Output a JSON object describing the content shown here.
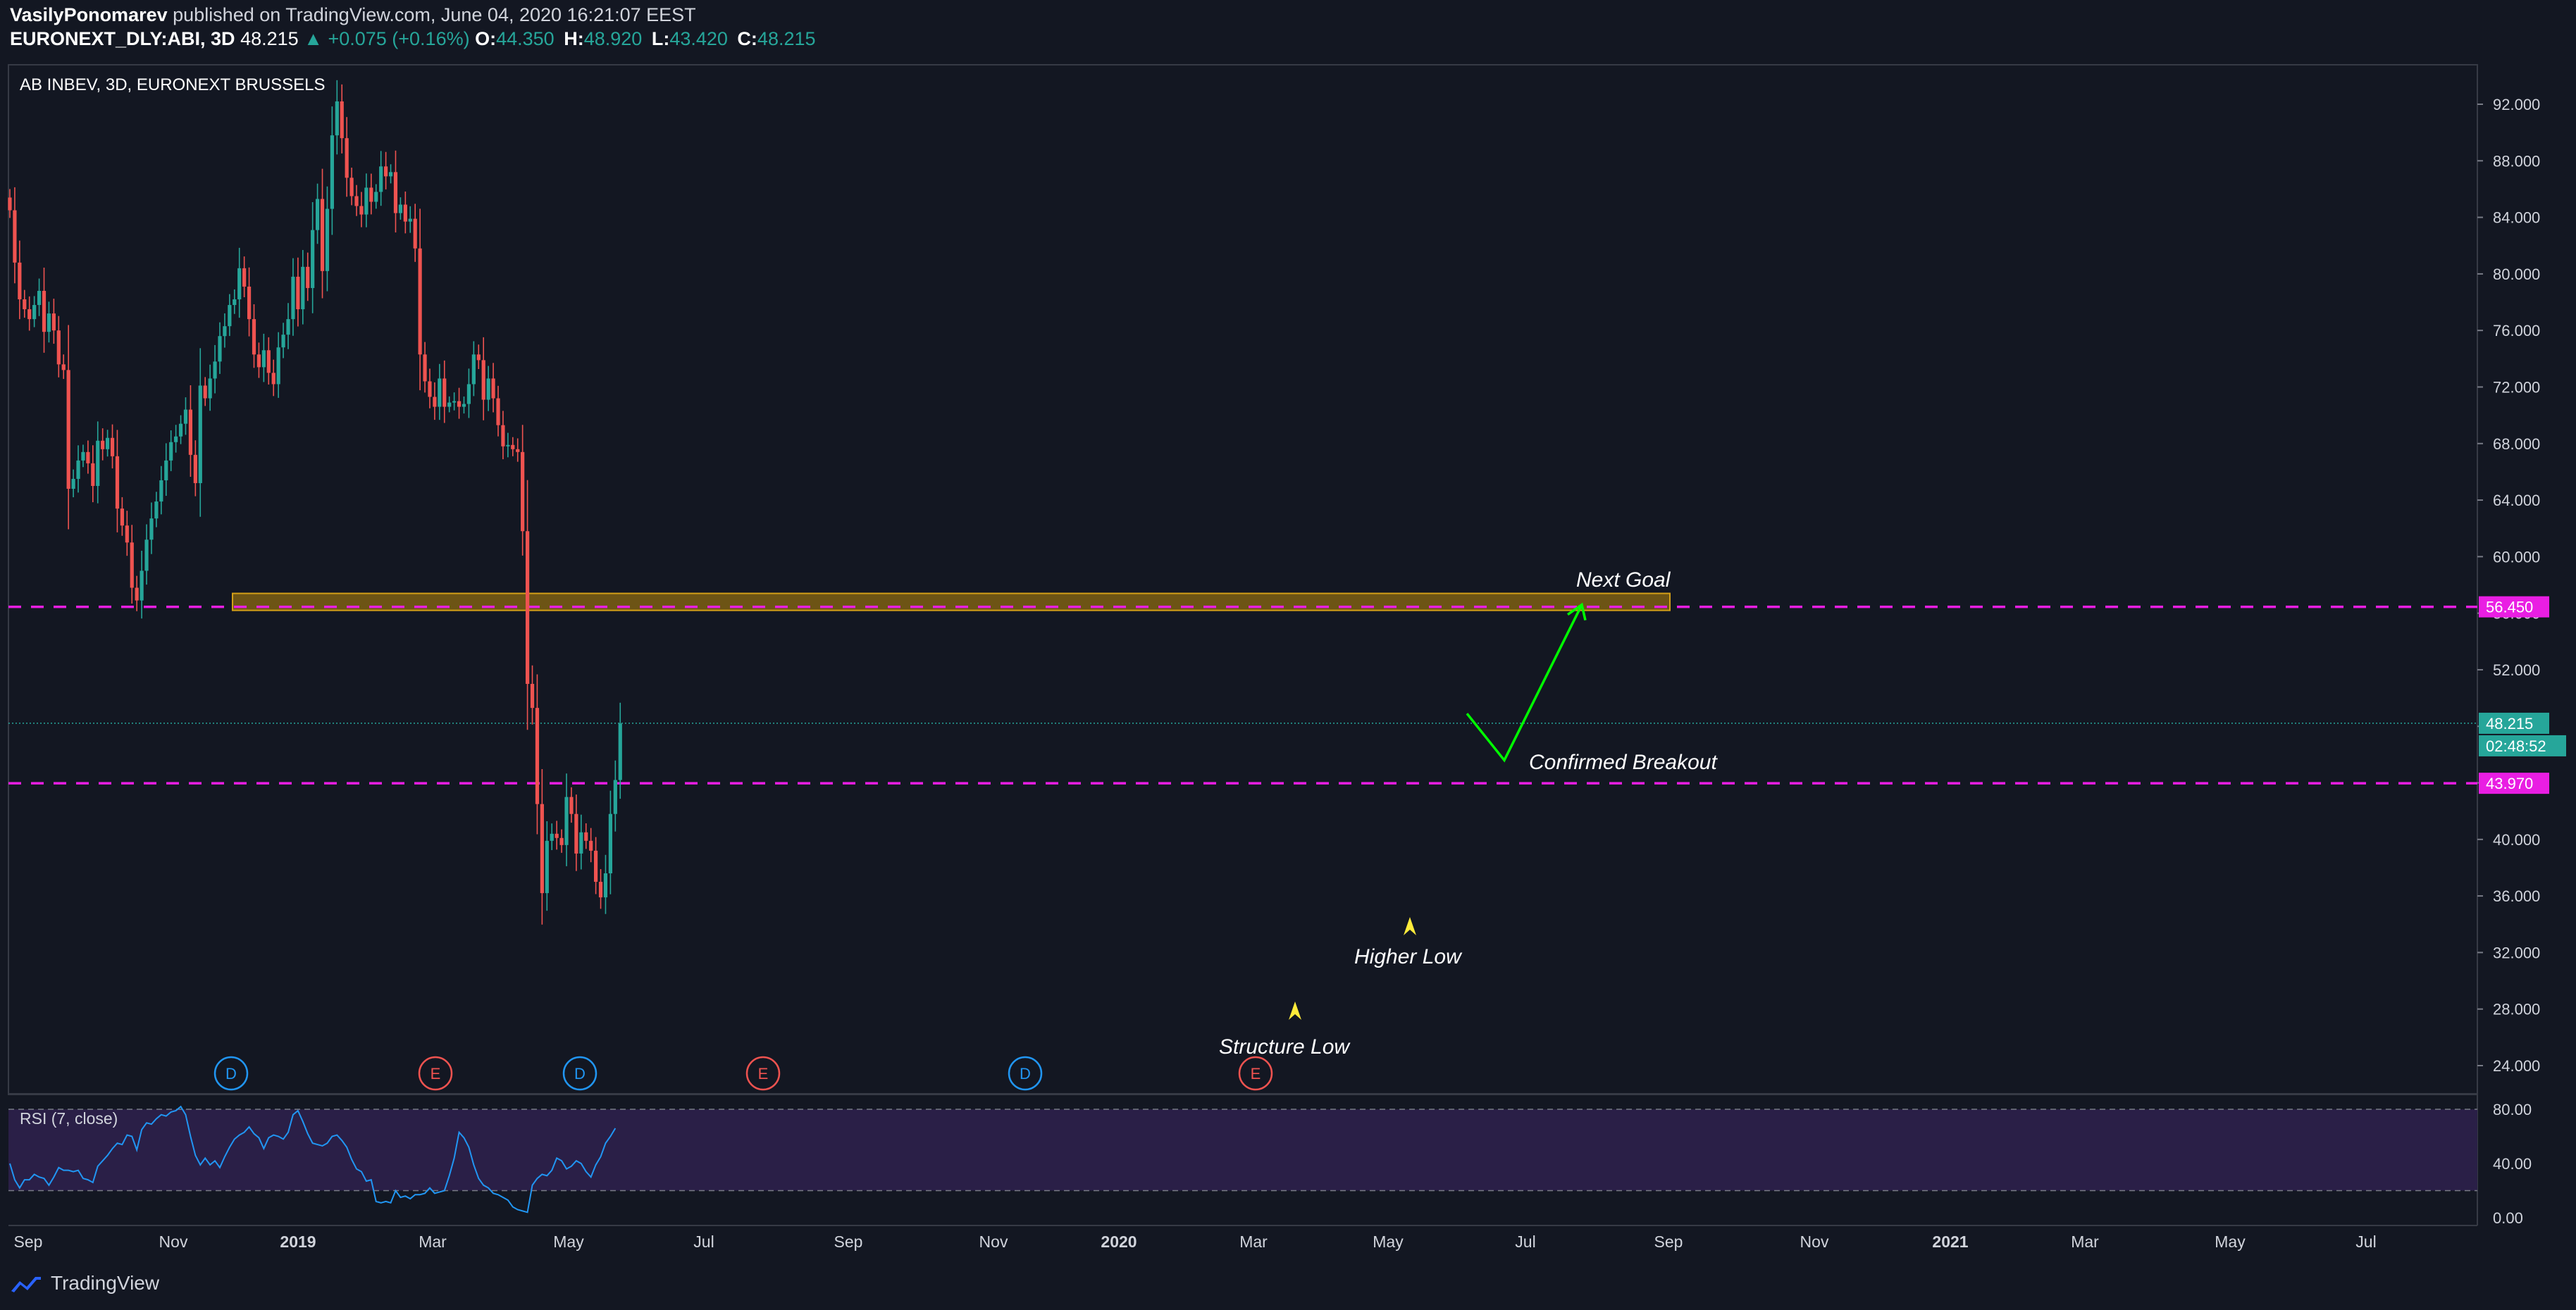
{
  "header": {
    "author": "VasilyPonomarev",
    "published_text": "published on TradingView.com, June 04, 2020 16:21:07 EEST",
    "symbol": "EURONEXT_DLY:ABI, 3D",
    "last": "48.215",
    "change": "+0.075 (+0.16%)",
    "o_label": "O:",
    "o": "44.350",
    "h_label": "H:",
    "h": "48.920",
    "l_label": "L:",
    "l": "43.420",
    "c_label": "C:",
    "c": "48.215"
  },
  "footer": {
    "brand": "TradingView"
  },
  "colors": {
    "background": "#131722",
    "up": "#26a69a",
    "down": "#ef5350",
    "level": "#e91ee3",
    "zone": "#b8860b",
    "arrow": "#00ff00",
    "marker": "#ffeb3b",
    "rsi_line": "#2196f3",
    "rsi_band": "#2a1f47"
  },
  "chart_data": {
    "type": "candlestick",
    "title": "AB INBEV, 3D, EURONEXT BRUSSELS",
    "ylim": [
      22.0,
      94.0
    ],
    "y_ticks": [
      "92.000",
      "88.000",
      "84.000",
      "80.000",
      "76.000",
      "72.000",
      "68.000",
      "64.000",
      "60.000",
      "56.000",
      "52.000",
      "48.000",
      "44.000",
      "40.000",
      "36.000",
      "32.000",
      "28.000",
      "24.000"
    ],
    "x_labels": [
      "Sep",
      "Nov",
      "2019",
      "Mar",
      "May",
      "Jul",
      "Sep",
      "Nov",
      "2020",
      "Mar",
      "May",
      "Jul",
      "Sep",
      "Nov",
      "2021",
      "Mar",
      "May",
      "Jul"
    ],
    "x_label_bold": [
      "2019",
      "2020",
      "2021"
    ],
    "closes": [
      84.5,
      80.8,
      78.2,
      77.5,
      76.8,
      77.8,
      78.8,
      75.9,
      77.2,
      76.0,
      73.6,
      73.2,
      64.8,
      65.5,
      66.8,
      67.4,
      66.6,
      65.0,
      68.2,
      67.6,
      68.4,
      67.1,
      63.4,
      62.2,
      61.0,
      57.8,
      56.9,
      59.0,
      61.2,
      62.7,
      63.9,
      65.4,
      66.8,
      68.1,
      68.5,
      69.4,
      70.4,
      67.2,
      65.2,
      72.1,
      71.2,
      72.6,
      73.8,
      75.6,
      76.3,
      77.8,
      78.2,
      80.4,
      79.1,
      76.8,
      74.3,
      73.4,
      74.6,
      73.0,
      72.2,
      74.8,
      75.7,
      76.8,
      79.8,
      77.5,
      80.5,
      79.0,
      83.1,
      85.3,
      80.2,
      84.6,
      89.8,
      92.2,
      89.6,
      86.8,
      85.5,
      84.8,
      84.2,
      86.1,
      85.1,
      85.8,
      87.6,
      86.9,
      87.2,
      84.3,
      84.9,
      83.7,
      83.9,
      81.8,
      74.3,
      72.4,
      71.3,
      70.6,
      72.6,
      70.6,
      70.9,
      71.0,
      70.6,
      70.8,
      72.2,
      74.3,
      73.9,
      71.1,
      72.6,
      71.2,
      69.3,
      67.8,
      67.9,
      67.6,
      67.4,
      61.8,
      51.0,
      49.3,
      42.5,
      36.2,
      39.9,
      40.4,
      40.1,
      39.6,
      43.0,
      41.8,
      39.0,
      40.5,
      39.9,
      39.2,
      37.0,
      35.9,
      37.6,
      41.8,
      44.2,
      48.2
    ],
    "rsi": {
      "label": "RSI (7, close)",
      "ylim": [
        0.0,
        85.0
      ],
      "ticks": [
        "80.00",
        "40.00",
        "0.00"
      ],
      "band": [
        20.0,
        80.0
      ],
      "values": [
        40.0,
        28.0,
        22.0,
        28.0,
        28.0,
        32.0,
        30.0,
        29.0,
        24.0,
        30.0,
        37.0,
        35.0,
        35.0,
        34.0,
        35.0,
        29.0,
        28.0,
        26.0,
        38.0,
        42.0,
        46.0,
        51.0,
        55.0,
        54.0,
        61.0,
        60.0,
        50.0,
        65.0,
        70.0,
        69.0,
        73.0,
        76.0,
        75.0,
        78.0,
        79.0,
        82.0,
        76.0,
        60.0,
        46.0,
        39.0,
        44.0,
        39.0,
        42.0,
        37.0,
        45.0,
        52.0,
        58.0,
        61.0,
        63.0,
        67.0,
        62.0,
        59.0,
        51.0,
        59.0,
        61.0,
        60.0,
        58.0,
        63.0,
        76.0,
        79.0,
        71.0,
        62.0,
        55.0,
        54.0,
        53.0,
        55.0,
        60.0,
        61.0,
        57.0,
        52.0,
        43.0,
        36.0,
        34.0,
        27.0,
        28.0,
        12.0,
        11.0,
        12.0,
        11.0,
        20.0,
        15.0,
        16.0,
        14.0,
        17.0,
        17.0,
        18.0,
        22.0,
        18.0,
        19.0,
        20.0,
        31.0,
        44.0,
        63.0,
        59.0,
        52.0,
        39.0,
        29.0,
        24.0,
        22.0,
        18.0,
        17.0,
        15.0,
        13.0,
        8.0,
        6.0,
        5.0,
        4.0,
        24.0,
        29.0,
        32.0,
        31.0,
        35.0,
        44.0,
        42.0,
        36.0,
        38.0,
        42.0,
        40.0,
        34.0,
        30.0,
        39.0,
        45.0,
        55.0,
        60.0,
        66.0
      ]
    },
    "levels": [
      {
        "name": "resistance",
        "value": 56.45,
        "label": "56.450"
      },
      {
        "name": "support",
        "value": 43.97,
        "label": "43.970"
      }
    ],
    "last_price": {
      "value": 48.215,
      "label": "48.215",
      "countdown": "02:48:52"
    },
    "zone": {
      "from": 56.2,
      "to": 57.4
    },
    "projection": [
      48.9,
      45.6,
      56.6
    ],
    "event_markers": [
      "D",
      "E",
      "D",
      "E",
      "D",
      "E"
    ],
    "annotations": {
      "next_goal": "Next Goal",
      "confirmed_breakout": "Confirmed Breakout",
      "higher_low": "Higher Low",
      "structure_low": "Structure Low"
    }
  }
}
